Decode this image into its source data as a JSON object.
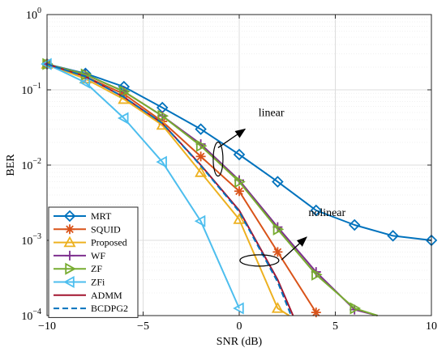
{
  "chart_data": {
    "type": "line",
    "xlabel": "SNR (dB)",
    "ylabel": "BER",
    "xlim": [
      -10,
      10
    ],
    "ylim": [
      0.0001,
      1
    ],
    "yscale": "log",
    "grid": true,
    "legend_position": "bottom-left",
    "x_ticks": [
      -10,
      -5,
      0,
      5,
      10
    ],
    "x_tick_labels": [
      "−10",
      "−5",
      "0",
      "5",
      "10"
    ],
    "y_ticks": [
      0.0001,
      0.001,
      0.01,
      0.1,
      1
    ],
    "y_tick_labels": [
      {
        "base": "10",
        "exp": "−4"
      },
      {
        "base": "10",
        "exp": "−3"
      },
      {
        "base": "10",
        "exp": "−2"
      },
      {
        "base": "10",
        "exp": "−1"
      },
      {
        "base": "10",
        "exp": "0"
      }
    ],
    "series": [
      {
        "name": "MRT",
        "color": "#0072BD",
        "marker": "diamond",
        "dash": "solid",
        "x": [
          -10,
          -8,
          -6,
          -4,
          -2,
          0,
          2,
          4,
          6,
          8,
          10
        ],
        "y": [
          0.22,
          0.165,
          0.11,
          0.058,
          0.03,
          0.0138,
          0.006,
          0.0025,
          0.0016,
          0.00115,
          0.001
        ]
      },
      {
        "name": "SQUID",
        "color": "#D95319",
        "marker": "star",
        "dash": "solid",
        "x": [
          -10,
          -8,
          -6,
          -4,
          -2,
          0,
          2,
          4
        ],
        "y": [
          0.22,
          0.15,
          0.088,
          0.038,
          0.013,
          0.0045,
          0.0007,
          0.00011
        ]
      },
      {
        "name": "Proposed",
        "color": "#EDB120",
        "marker": "triangle-up",
        "dash": "solid",
        "x": [
          -10,
          -8,
          -6,
          -4,
          -2,
          0,
          2,
          2.6
        ],
        "y": [
          0.22,
          0.14,
          0.075,
          0.034,
          0.008,
          0.0019,
          0.000125,
          0.0001
        ]
      },
      {
        "name": "WF",
        "color": "#7E2F8E",
        "marker": "plus",
        "dash": "solid",
        "x": [
          -10,
          -8,
          -6,
          -4,
          -2,
          0,
          2,
          4,
          6,
          7.2
        ],
        "y": [
          0.22,
          0.16,
          0.095,
          0.045,
          0.019,
          0.0063,
          0.0015,
          0.00038,
          0.00012,
          0.0001
        ]
      },
      {
        "name": "ZF",
        "color": "#77AC30",
        "marker": "triangle-right",
        "dash": "solid",
        "x": [
          -10,
          -8,
          -6,
          -4,
          -2,
          0,
          2,
          4,
          6,
          7.2
        ],
        "y": [
          0.22,
          0.16,
          0.095,
          0.045,
          0.018,
          0.006,
          0.0014,
          0.00035,
          0.000125,
          0.0001
        ]
      },
      {
        "name": "ZFi",
        "color": "#4DBEEE",
        "marker": "triangle-left",
        "dash": "solid",
        "x": [
          -10,
          -8,
          -6,
          -4,
          -2,
          0
        ],
        "y": [
          0.22,
          0.125,
          0.042,
          0.011,
          0.0018,
          0.000125
        ]
      },
      {
        "name": "ADMM",
        "color": "#A2142F",
        "marker": "none",
        "dash": "solid",
        "x": [
          -10,
          -8,
          -6,
          -4,
          -2,
          0,
          2,
          2.8
        ],
        "y": [
          0.22,
          0.15,
          0.08,
          0.036,
          0.01,
          0.0025,
          0.0003,
          0.0001
        ]
      },
      {
        "name": "BCDPG2",
        "color": "#0072BD",
        "marker": "none",
        "dash": "dashed",
        "x": [
          -10,
          -8,
          -6,
          -4,
          -2,
          0,
          2,
          2.7
        ],
        "y": [
          0.22,
          0.15,
          0.08,
          0.036,
          0.0098,
          0.0024,
          0.00028,
          0.0001
        ]
      }
    ],
    "annotations": [
      {
        "text": "linear",
        "x": 1,
        "y": 0.045,
        "arrow_from": [
          -1.1,
          0.017
        ],
        "arrow_to": [
          0.3,
          0.03
        ],
        "ellipse_center": [
          -1.1,
          0.012
        ]
      },
      {
        "text": "nolinear",
        "x": 3.6,
        "y": 0.0021,
        "arrow_from": [
          2.2,
          0.00055
        ],
        "arrow_to": [
          3.5,
          0.0011
        ],
        "ellipse_center": [
          1.05,
          0.00054
        ]
      }
    ]
  }
}
